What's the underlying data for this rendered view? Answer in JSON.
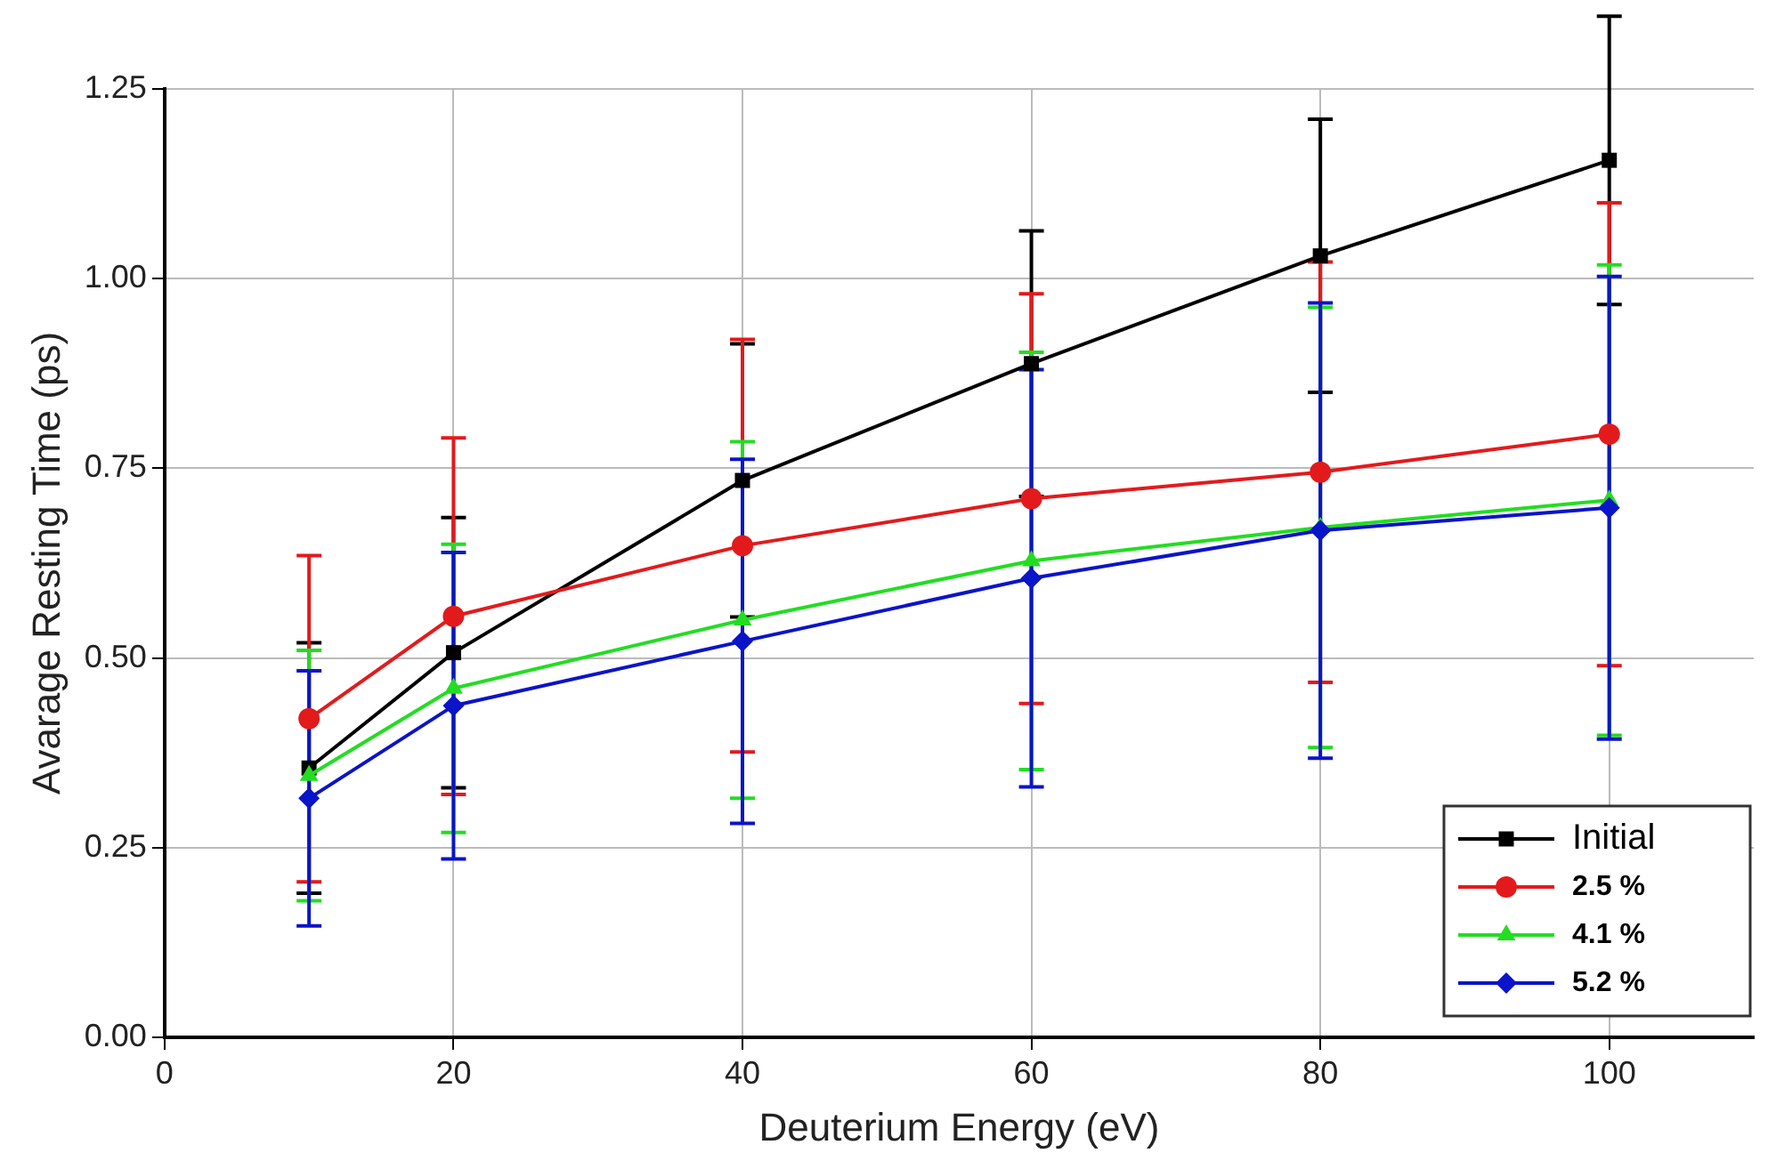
{
  "chart_data": {
    "type": "line",
    "xlabel": "Deuterium Energy (eV)",
    "ylabel": "Avarage Resting Time (ps)",
    "x": [
      10,
      20,
      40,
      60,
      80,
      100
    ],
    "xlim": [
      0,
      110
    ],
    "xticks": [
      0,
      20,
      40,
      60,
      80,
      100
    ],
    "ylim": [
      0,
      1.25
    ],
    "yticks": [
      {
        "value": 0,
        "label": "0.00"
      },
      0.25,
      {
        "value": 0.5,
        "label": "0.50"
      },
      0.75,
      {
        "value": 1,
        "label": "1.00"
      },
      1.25
    ],
    "grid": true,
    "legend": "bottom right",
    "line_style": "solid",
    "series": [
      {
        "name": "Initial",
        "color": "#000000",
        "marker": "square",
        "values": [
          0.355,
          0.507,
          0.734,
          0.888,
          1.03,
          1.156
        ],
        "errors": [
          0.165,
          0.178,
          0.18,
          0.175,
          0.18,
          0.19
        ]
      },
      {
        "name": "2.5 %",
        "color": "#e31a1c",
        "marker": "circle",
        "values": [
          0.42,
          0.555,
          0.648,
          0.71,
          0.745,
          0.795
        ],
        "errors": [
          0.215,
          0.235,
          0.272,
          0.27,
          0.277,
          0.305
        ]
      },
      {
        "name": "4.1 %",
        "color": "#22dd22",
        "marker": "triangle",
        "values": [
          0.345,
          0.46,
          0.55,
          0.628,
          0.672,
          0.708
        ],
        "errors": [
          0.165,
          0.19,
          0.235,
          0.275,
          0.29,
          0.31
        ]
      },
      {
        "name": "5.2 %",
        "color": "#0a14c8",
        "marker": "diamond",
        "values": [
          0.315,
          0.437,
          0.522,
          0.605,
          0.668,
          0.698
        ],
        "errors": [
          0.168,
          0.202,
          0.24,
          0.275,
          0.3,
          0.305
        ]
      }
    ]
  }
}
